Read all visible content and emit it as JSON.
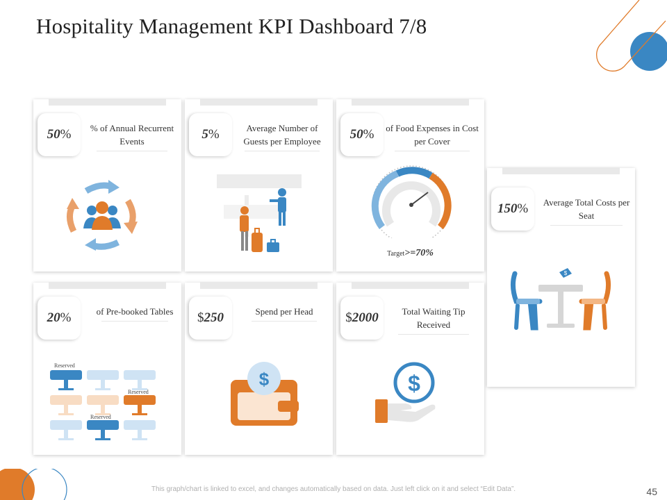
{
  "title": "Hospitality Management KPI Dashboard 7/8",
  "kpis": [
    {
      "value": "50",
      "unit": "%",
      "label": "% of Annual Recurrent Events"
    },
    {
      "value": "5",
      "unit": "%",
      "label": "Average Number of Guests per Employee"
    },
    {
      "value": "50",
      "unit": "%",
      "label": "of Food Expenses in Cost per Cover"
    },
    {
      "value": "150",
      "unit": "%",
      "label": "Average Total Costs per Seat"
    },
    {
      "value": "20",
      "unit": "%",
      "label": "of Pre-booked Tables"
    },
    {
      "value": "250",
      "unit": "$",
      "label": "Spend per Head"
    },
    {
      "value": "2000",
      "unit": "$",
      "label": "Total Waiting Tip Received"
    }
  ],
  "gauge": {
    "target_prefix": "Target",
    "target_value": ">=70%"
  },
  "tables": {
    "reserved_label": "Reserved"
  },
  "footer": {
    "note": "This graph/chart is linked to excel, and changes automatically based on data. Just left click on it and select “Edit Data”.",
    "page_number": "45"
  },
  "colors": {
    "blue": "#3a87c3",
    "orange": "#e07b2a",
    "light_blue": "#cfe3f4",
    "light_orange": "#f8dcc3"
  },
  "icons": [
    "recurring-cycle-icon",
    "staff-guest-icon",
    "speedometer-icon",
    "dining-table-icon",
    "reserved-tables-icon",
    "wallet-icon",
    "tip-hand-icon"
  ]
}
